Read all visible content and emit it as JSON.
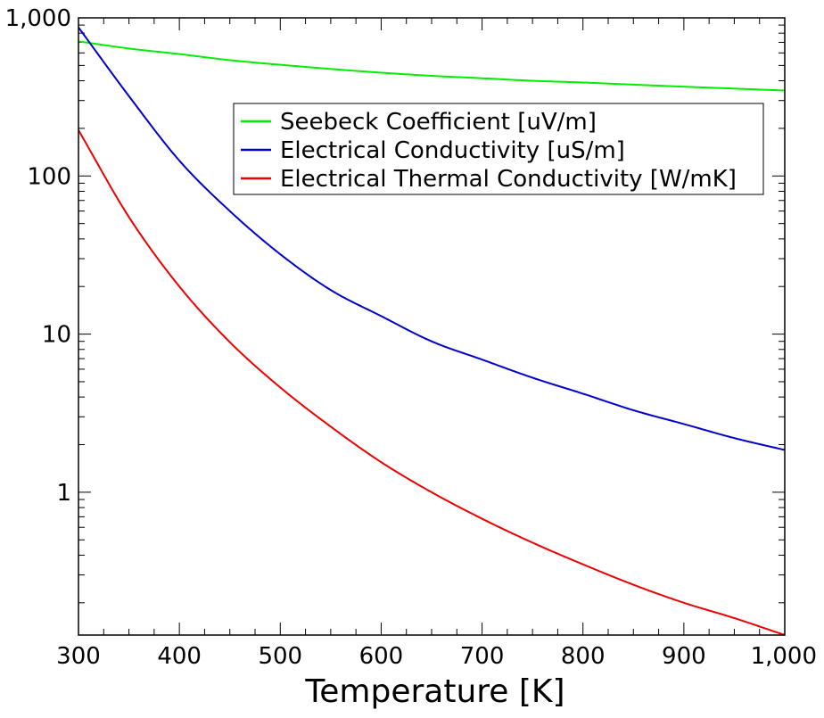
{
  "chart_data": {
    "type": "line",
    "title": "",
    "xlabel": "Temperature [K]",
    "ylabel": "",
    "xlim": [
      300,
      1000
    ],
    "ylim": [
      0.125,
      1000
    ],
    "yscale": "log",
    "grid": false,
    "legend_position": "top-right",
    "x_ticks": [
      300,
      400,
      500,
      600,
      700,
      800,
      900,
      1000
    ],
    "x_tick_labels": [
      "300",
      "400",
      "500",
      "600",
      "700",
      "800",
      "900",
      "1,000"
    ],
    "y_ticks": [
      1,
      10,
      100,
      1000
    ],
    "y_tick_labels": [
      "1",
      "10",
      "100",
      "1,000"
    ],
    "x": [
      300,
      350,
      400,
      450,
      500,
      550,
      600,
      650,
      700,
      750,
      800,
      850,
      900,
      950,
      1000
    ],
    "series": [
      {
        "name": "Seebeck Coefficient [uV/m]",
        "color": "#00ee00",
        "values": [
          710,
          640,
          590,
          540,
          505,
          475,
          450,
          430,
          415,
          400,
          390,
          378,
          367,
          357,
          347
        ]
      },
      {
        "name": "Electrical Conductivity [uS/m]",
        "color": "#0000cc",
        "values": [
          870,
          320,
          125,
          60,
          32,
          19,
          13,
          9,
          6.9,
          5.3,
          4.2,
          3.3,
          2.7,
          2.2,
          1.85
        ]
      },
      {
        "name": "Electrical Thermal Conductivity [W/mK]",
        "color": "#ee0000",
        "values": [
          195,
          55,
          20,
          8.9,
          4.6,
          2.6,
          1.55,
          1.0,
          0.68,
          0.48,
          0.35,
          0.26,
          0.2,
          0.16,
          0.125
        ]
      }
    ]
  }
}
